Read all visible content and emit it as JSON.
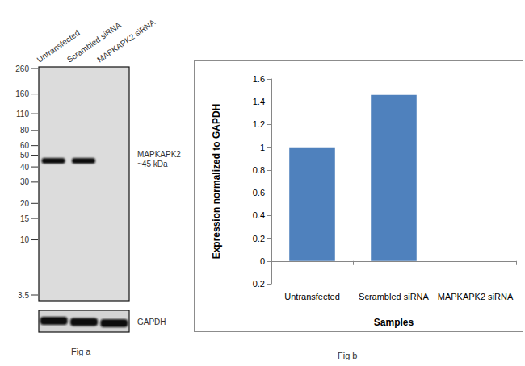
{
  "blot": {
    "caption": "Fig a",
    "lanes": [
      "Untransfected",
      "Scrambled siRNA",
      "MAPKAPK2 siRNA"
    ],
    "markers": [
      260,
      160,
      110,
      80,
      60,
      50,
      40,
      30,
      20,
      15,
      10,
      3.5
    ],
    "band_kda": 45,
    "band_label": [
      "MAPKAPK2",
      "~45 kDa"
    ],
    "band_present": [
      true,
      true,
      false
    ],
    "loading_control": "GAPDH"
  },
  "chart_data": {
    "type": "bar",
    "caption": "Fig b",
    "x_label": "Samples",
    "y_label": "Expression normalized to GAPDH",
    "categories": [
      "Untransfected",
      "Scrambled siRNA",
      "MAPKAPK2 siRNA"
    ],
    "values": [
      1.0,
      1.46,
      0
    ],
    "color": "#4f81bd",
    "ylim": [
      -0.2,
      1.6
    ],
    "yticks": [
      -0.2,
      0,
      0.2,
      0.4,
      0.6,
      0.8,
      1,
      1.2,
      1.4,
      1.6
    ],
    "grid": false
  }
}
